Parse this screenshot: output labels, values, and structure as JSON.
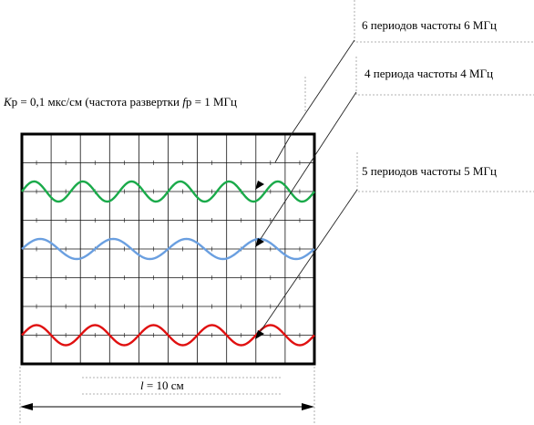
{
  "scale_label": {
    "k_symbol": "K",
    "k_sub": "р",
    "rest1": " = 0,1 мкс/см (частота развертки ",
    "f_symbol": "f",
    "f_sub": "р",
    "rest2": " = 1 МГц"
  },
  "callouts": {
    "six": "6 периодов частоты 6 МГц",
    "four": "4 периода частоты 4 МГц",
    "five": "5 периодов частоты 5 МГц"
  },
  "length_label": {
    "symbol": "l",
    "rest": " = 10 см"
  },
  "screen": {
    "divisions_x": 10,
    "divisions_y": 8
  },
  "traces": [
    {
      "name": "6 МГц",
      "periods": 6,
      "color": "#1aaa4a"
    },
    {
      "name": "4 МГц",
      "periods": 4,
      "color": "#6a9fe0"
    },
    {
      "name": "5 МГц",
      "periods": 5,
      "color": "#e01010"
    }
  ]
}
